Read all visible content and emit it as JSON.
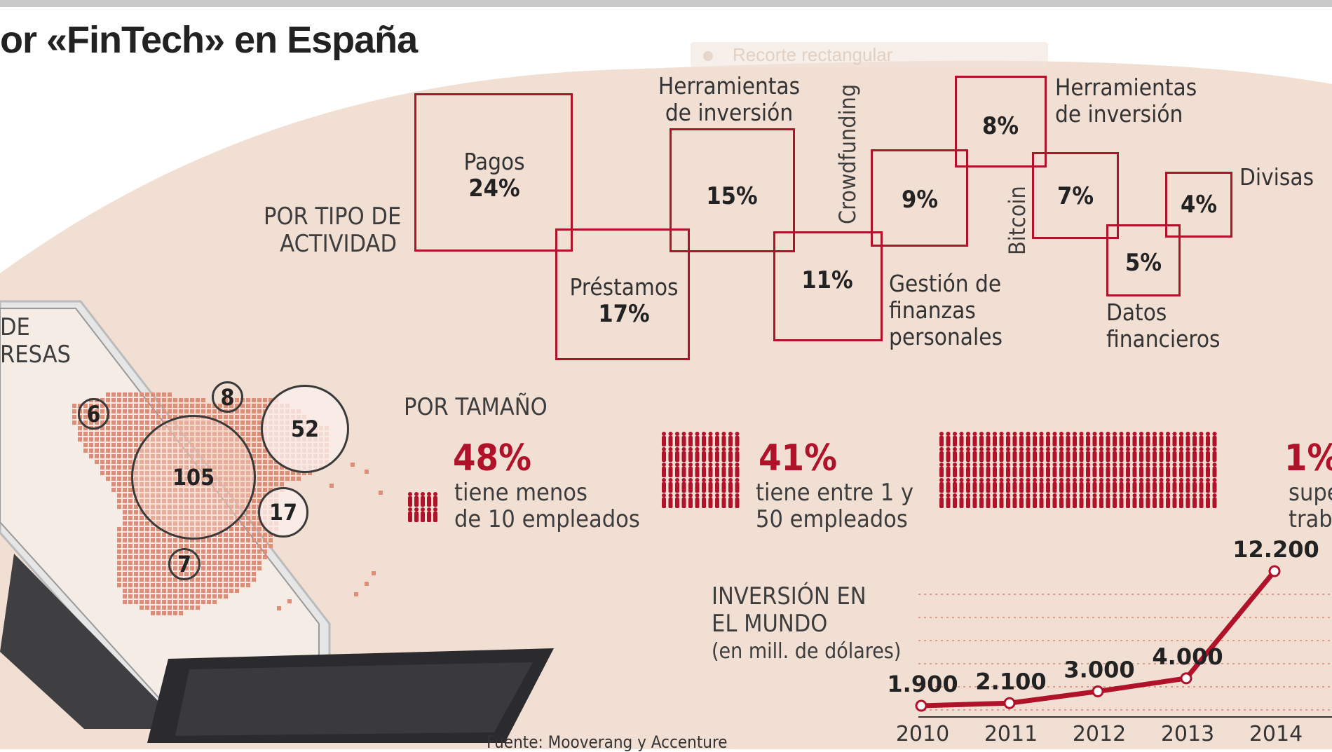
{
  "title": "or «FinTech» en España",
  "ghost_overlay": "Recorte rectangular",
  "activity": {
    "label": [
      "POR TIPO DE",
      "ACTIVIDAD"
    ],
    "items": [
      {
        "name": "Pagos",
        "pct": "24%"
      },
      {
        "name": "Préstamos",
        "pct": "17%"
      },
      {
        "name": [
          "Herramientas",
          "de inversión"
        ],
        "pct": "15%"
      },
      {
        "name": "",
        "pct": "11%"
      },
      {
        "name": "Crowdfunding",
        "pct": "9%"
      },
      {
        "name": [
          "Gestión de",
          "finanzas",
          "personales"
        ],
        "pct": ""
      },
      {
        "name": "",
        "pct": "8%"
      },
      {
        "name": [
          "Herramientas",
          "de inversión"
        ],
        "pct": "7%"
      },
      {
        "name": "Bitcoin",
        "pct": ""
      },
      {
        "name": "",
        "pct": "5%"
      },
      {
        "name": [
          "Datos",
          "financieros"
        ],
        "pct": ""
      },
      {
        "name": "Divisas",
        "pct": "4%"
      }
    ]
  },
  "map": {
    "label": [
      "DE",
      "RESAS"
    ],
    "bubbles": [
      "6",
      "8",
      "52",
      "105",
      "17",
      "7"
    ]
  },
  "size": {
    "label": "POR TAMAÑO",
    "groups": [
      {
        "pct": "48%",
        "desc": [
          "tiene menos",
          "de 10 empleados"
        ]
      },
      {
        "pct": "41%",
        "desc": [
          "tiene entre 1 y",
          "50 empleados"
        ]
      },
      {
        "pct": "1%",
        "desc": [
          "supe",
          "trab"
        ]
      }
    ]
  },
  "investment": {
    "label": [
      "INVERSIÓN EN",
      "EL MUNDO"
    ],
    "unit": "(en mill. de dólares)"
  },
  "source": "Fuente: Mooverang y Accenture",
  "colors": {
    "accent": "#b0122a",
    "background_band": "#f2dfd4"
  },
  "chart_data": {
    "type": "line",
    "x": [
      "2010",
      "2011",
      "2012",
      "2013",
      "2014"
    ],
    "values": [
      1900,
      2100,
      3000,
      4000,
      12200
    ],
    "labels": [
      "1.900",
      "2.100",
      "3.000",
      "4.000",
      "12.200"
    ],
    "ylabel": "(en mill. de dólares)"
  }
}
